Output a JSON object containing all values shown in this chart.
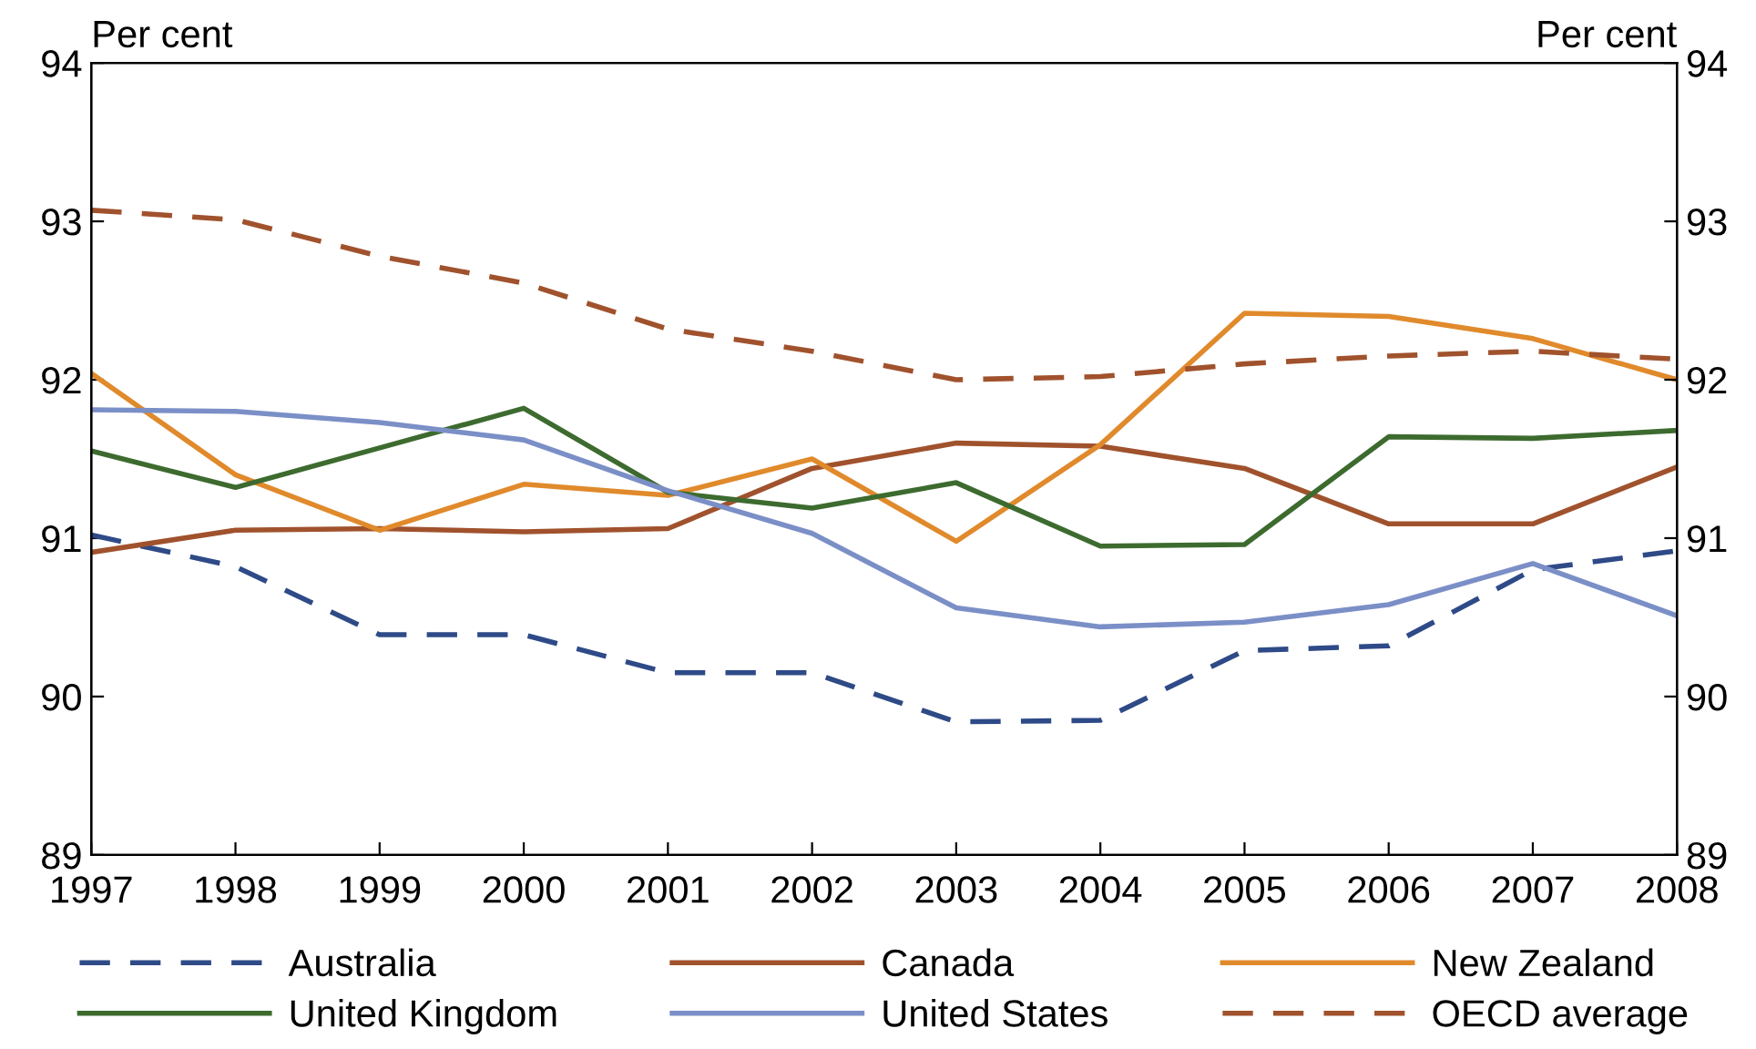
{
  "chart_data": {
    "type": "line",
    "ylabel": "Per cent",
    "y2label": "Per cent",
    "x": [
      1997,
      1998,
      1999,
      2000,
      2001,
      2002,
      2003,
      2004,
      2005,
      2006,
      2007,
      2008
    ],
    "xlim": [
      1997,
      2008
    ],
    "xticks": [
      1997,
      1998,
      1999,
      2000,
      2001,
      2002,
      2003,
      2004,
      2005,
      2006,
      2007,
      2008
    ],
    "ylim": [
      89,
      94
    ],
    "yticks": [
      89,
      90,
      91,
      92,
      93,
      94
    ],
    "y2lim": [
      89,
      94
    ],
    "y2ticks": [
      89,
      90,
      91,
      92,
      93,
      94
    ],
    "grid": false,
    "legend": "bottom",
    "marker": "none",
    "series": [
      {
        "name": "Australia",
        "color": "#2e4a87",
        "line_style": "dashed",
        "values": [
          91.02,
          90.82,
          90.39,
          90.39,
          90.15,
          90.15,
          89.84,
          89.85,
          90.29,
          90.32,
          90.8,
          90.92
        ]
      },
      {
        "name": "Canada",
        "color": "#a0522d",
        "line_style": "solid",
        "values": [
          90.91,
          91.05,
          91.06,
          91.04,
          91.06,
          91.44,
          91.6,
          91.58,
          91.44,
          91.09,
          91.09,
          91.45
        ]
      },
      {
        "name": "New Zealand",
        "color": "#e08a2c",
        "line_style": "solid",
        "values": [
          92.04,
          91.4,
          91.05,
          91.34,
          91.27,
          91.5,
          90.98,
          91.59,
          92.42,
          92.4,
          92.26,
          92.0
        ]
      },
      {
        "name": "United Kingdom",
        "color": "#3d6b2f",
        "line_style": "solid",
        "values": [
          91.55,
          91.32,
          91.57,
          91.82,
          91.29,
          91.19,
          91.35,
          90.95,
          90.96,
          91.64,
          91.63,
          91.68
        ]
      },
      {
        "name": "United States",
        "color": "#7b8fc7",
        "line_style": "solid",
        "values": [
          91.81,
          91.8,
          91.73,
          91.62,
          91.3,
          91.03,
          90.56,
          90.44,
          90.47,
          90.58,
          90.84,
          90.51
        ]
      },
      {
        "name": "OECD average",
        "color": "#a0522d",
        "line_style": "dashed",
        "values": [
          93.07,
          93.01,
          92.78,
          92.61,
          92.32,
          92.18,
          92.0,
          92.02,
          92.1,
          92.15,
          92.18,
          92.13
        ]
      }
    ]
  }
}
